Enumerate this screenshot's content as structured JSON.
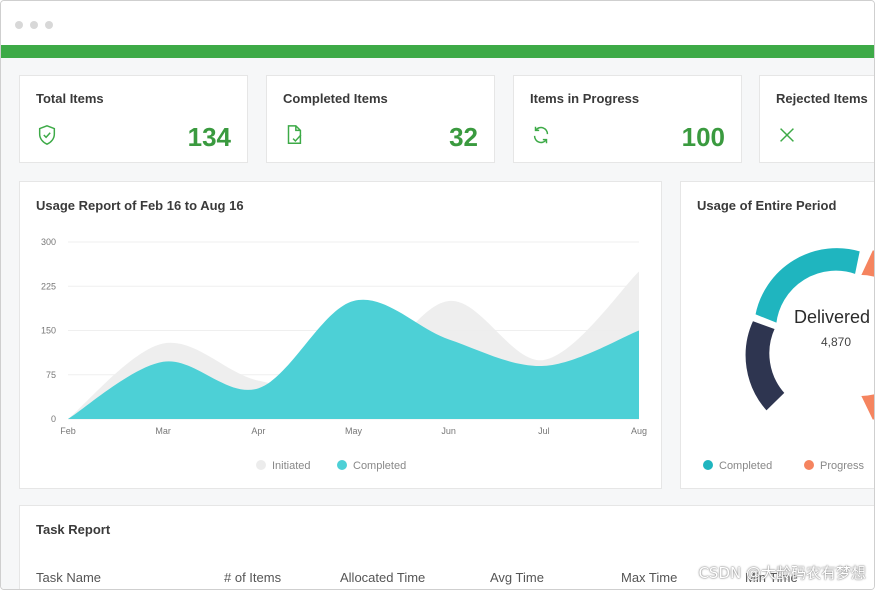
{
  "stats": [
    {
      "title": "Total Items",
      "value": "134",
      "icon": "shield-check-icon"
    },
    {
      "title": "Completed Items",
      "value": "32",
      "icon": "document-check-icon"
    },
    {
      "title": "Items in Progress",
      "value": "100",
      "icon": "refresh-icon"
    },
    {
      "title": "Rejected Items",
      "value": "",
      "icon": "x-icon"
    }
  ],
  "usage_report": {
    "title": "Usage Report of Feb 16 to Aug 16"
  },
  "usage_entire": {
    "title": "Usage of Entire Period",
    "center_label": "Delivered",
    "center_value": "4,870",
    "legend": [
      {
        "label": "Completed",
        "color": "#1fb5bf"
      },
      {
        "label": "Progress",
        "color": "#f5845f"
      }
    ]
  },
  "task_report": {
    "title": "Task Report",
    "columns": [
      "Task Name",
      "# of Items",
      "Allocated Time",
      "Avg Time",
      "Max Time",
      "Min Time"
    ]
  },
  "colors": {
    "accent_green": "#3daa47",
    "completed": "#4dd0d6",
    "initiated": "#ececec",
    "donut_dark": "#2e3550",
    "donut_teal": "#1fb5bf",
    "donut_orange": "#f5845f"
  },
  "watermark": "CSDN @大龄码农有梦想",
  "chart_data": {
    "type": "area",
    "title": "Usage Report of Feb 16 to Aug 16",
    "categories": [
      "Feb",
      "Mar",
      "Apr",
      "May",
      "Jun",
      "Jul",
      "Aug"
    ],
    "yticks": [
      "0",
      "75",
      "150",
      "225",
      "300"
    ],
    "ylim": [
      0,
      300
    ],
    "grid": true,
    "legend_position": "bottom",
    "series": [
      {
        "name": "Initiated",
        "values": [
          0,
          128,
          65,
          60,
          200,
          100,
          250
        ]
      },
      {
        "name": "Completed",
        "values": [
          0,
          97,
          52,
          200,
          135,
          90,
          150
        ]
      }
    ]
  }
}
